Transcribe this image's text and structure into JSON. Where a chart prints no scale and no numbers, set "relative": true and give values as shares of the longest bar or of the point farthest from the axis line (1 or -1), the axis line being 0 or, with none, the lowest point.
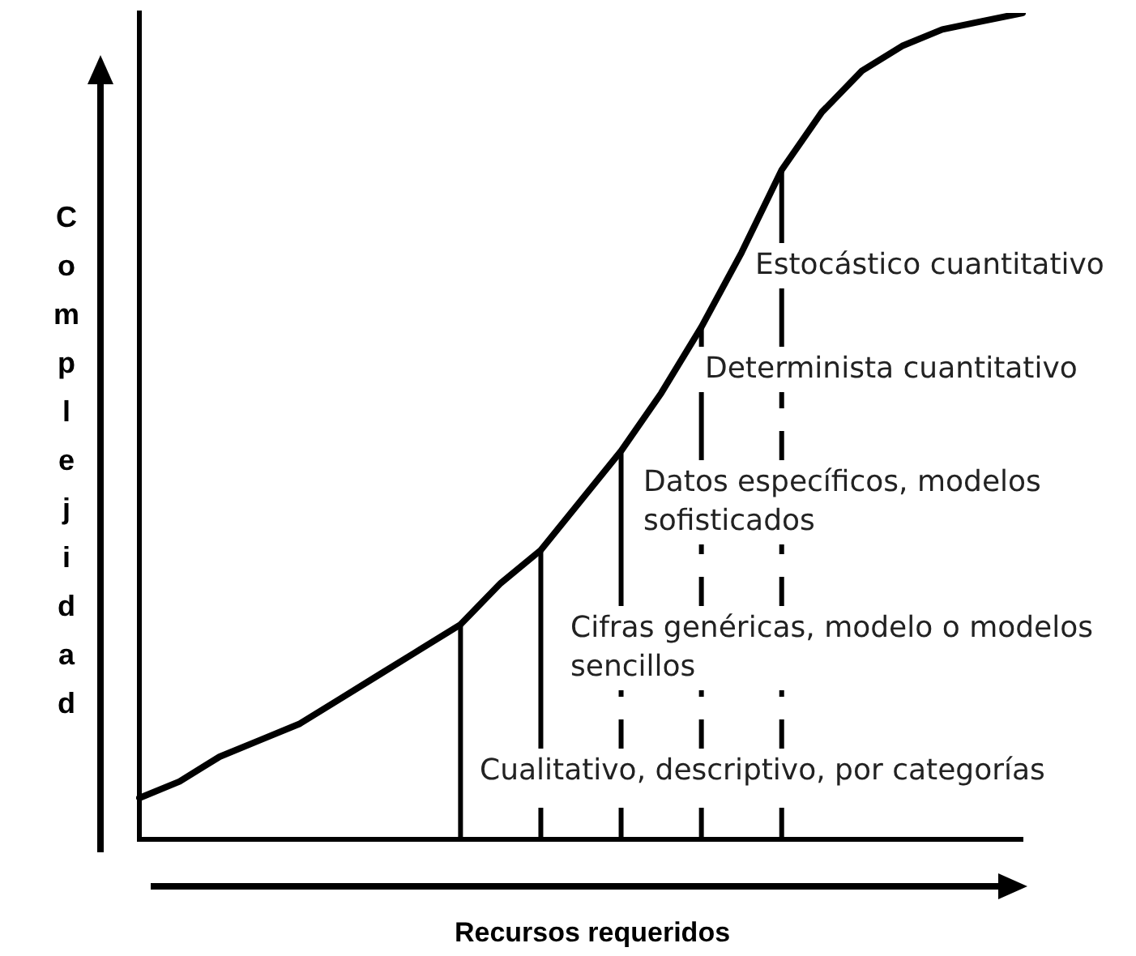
{
  "chart_data": {
    "type": "line",
    "relative": true,
    "xlabel": "Recursos requeridos",
    "ylabel": "Complejidad",
    "legend": false,
    "grid": false,
    "marker": "none",
    "categories": [
      null,
      null,
      null,
      null,
      null,
      null,
      null,
      null,
      null,
      null,
      null,
      null,
      null,
      null,
      null,
      null,
      null,
      null,
      null,
      null,
      null,
      null,
      null
    ],
    "series": [
      {
        "color": "#000000",
        "values": [
          0.05,
          0.07,
          0.1,
          0.12,
          0.14,
          0.17,
          0.2,
          0.23,
          0.26,
          0.31,
          0.35,
          0.41,
          0.47,
          0.54,
          0.62,
          0.71,
          0.81,
          0.88,
          0.93,
          0.96,
          0.98,
          0.99,
          1
        ]
      }
    ],
    "annotations": [
      "Cualitativo, descriptivo, por categorías",
      "Cifras genéricas, modelo o modelos sencillos",
      "Datos específicos, modelos sofisticados",
      "Determinista cuantitativo",
      "Estocástico cuantitativo"
    ]
  }
}
